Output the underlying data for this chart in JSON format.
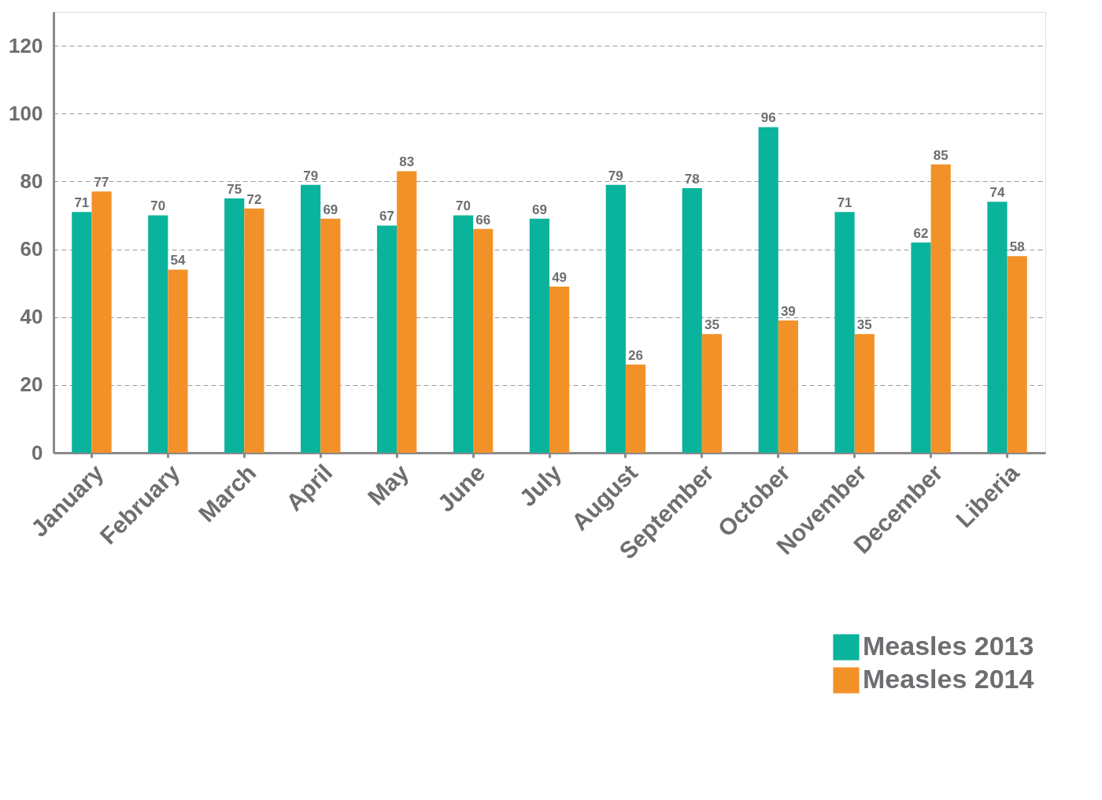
{
  "chart_data": {
    "type": "bar",
    "categories": [
      "January",
      "February",
      "March",
      "April",
      "May",
      "June",
      "July",
      "August",
      "September",
      "October",
      "November",
      "December",
      "Liberia"
    ],
    "series": [
      {
        "name": "Measles 2013",
        "color": "#0ab39c",
        "values": [
          71,
          70,
          75,
          79,
          67,
          70,
          69,
          79,
          78,
          96,
          71,
          62,
          74
        ]
      },
      {
        "name": "Measles 2014",
        "color": "#f39129",
        "values": [
          77,
          54,
          72,
          69,
          83,
          66,
          49,
          26,
          35,
          39,
          35,
          85,
          58
        ]
      }
    ],
    "ylim": [
      0,
      130
    ],
    "yticks": [
      0,
      20,
      40,
      60,
      80,
      100,
      120
    ],
    "grid": "y",
    "legend": "bottom right",
    "data_labels": true
  }
}
